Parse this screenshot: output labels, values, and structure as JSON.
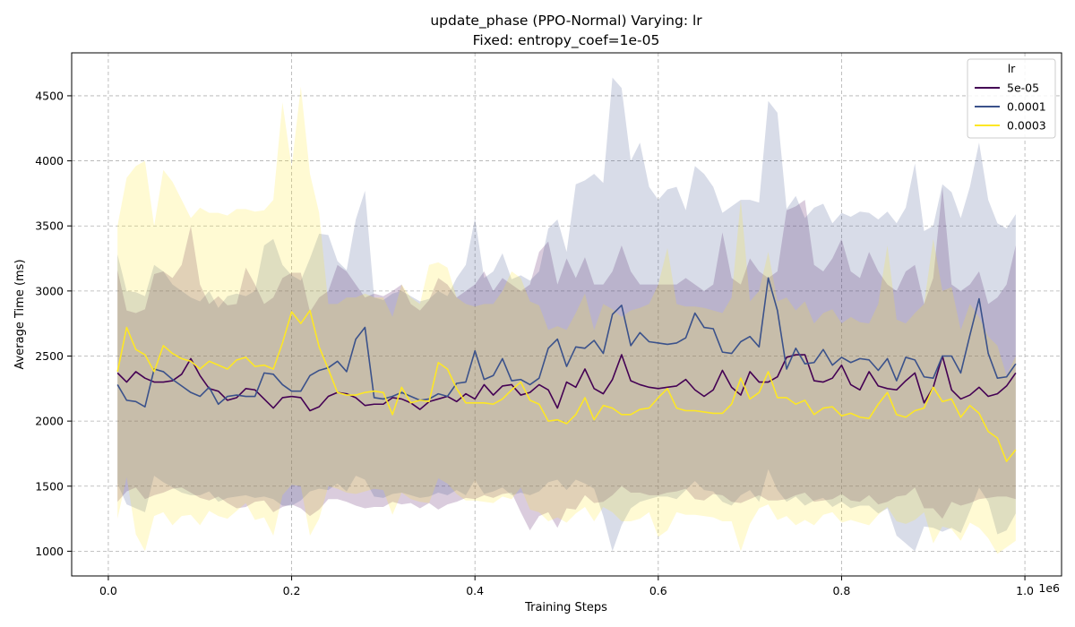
{
  "chart_data": {
    "type": "line",
    "title_line1": "update_phase (PPO-Normal) Varying: lr",
    "title_line2": "Fixed: entropy_coef=1e-05",
    "xlabel": "Training Steps",
    "ylabel": "Average Time (ms)",
    "x_offset_label": "1e6",
    "xlim": [
      -0.04,
      1.04
    ],
    "ylim": [
      810,
      4830
    ],
    "x_ticks": [
      0.0,
      0.2,
      0.4,
      0.6,
      0.8,
      1.0
    ],
    "x_tick_labels": [
      "0.0",
      "0.2",
      "0.4",
      "0.6",
      "0.8",
      "1.0"
    ],
    "y_ticks": [
      1000,
      1500,
      2000,
      2500,
      3000,
      3500,
      4000,
      4500
    ],
    "y_tick_labels": [
      "1000",
      "1500",
      "2000",
      "2500",
      "3000",
      "3500",
      "4000",
      "4500"
    ],
    "grid": true,
    "legend": {
      "title": "lr",
      "position": "top-right"
    },
    "x": [
      0.01,
      0.02,
      0.03,
      0.04,
      0.05,
      0.06,
      0.07,
      0.08,
      0.09,
      0.1,
      0.11,
      0.12,
      0.13,
      0.14,
      0.15,
      0.16,
      0.17,
      0.18,
      0.19,
      0.2,
      0.21,
      0.22,
      0.23,
      0.24,
      0.25,
      0.26,
      0.27,
      0.28,
      0.29,
      0.3,
      0.31,
      0.32,
      0.33,
      0.34,
      0.35,
      0.36,
      0.37,
      0.38,
      0.39,
      0.4,
      0.41,
      0.42,
      0.43,
      0.44,
      0.45,
      0.46,
      0.47,
      0.48,
      0.49,
      0.5,
      0.51,
      0.52,
      0.53,
      0.54,
      0.55,
      0.56,
      0.57,
      0.58,
      0.59,
      0.6,
      0.61,
      0.62,
      0.63,
      0.64,
      0.65,
      0.66,
      0.67,
      0.68,
      0.69,
      0.7,
      0.71,
      0.72,
      0.73,
      0.74,
      0.75,
      0.76,
      0.77,
      0.78,
      0.79,
      0.8,
      0.81,
      0.82,
      0.83,
      0.84,
      0.85,
      0.86,
      0.87,
      0.88,
      0.89,
      0.9,
      0.91,
      0.92,
      0.93,
      0.94,
      0.95,
      0.96,
      0.97,
      0.98,
      0.99
    ],
    "series": [
      {
        "name": "5e-05",
        "color": "#440154",
        "values": [
          2370,
          2300,
          2380,
          2330,
          2300,
          2300,
          2310,
          2360,
          2480,
          2350,
          2250,
          2230,
          2160,
          2180,
          2250,
          2240,
          2170,
          2100,
          2180,
          2190,
          2180,
          2080,
          2110,
          2190,
          2220,
          2210,
          2180,
          2120,
          2130,
          2130,
          2180,
          2170,
          2140,
          2090,
          2150,
          2170,
          2190,
          2150,
          2210,
          2170,
          2280,
          2200,
          2270,
          2280,
          2200,
          2220,
          2280,
          2240,
          2100,
          2300,
          2260,
          2400,
          2250,
          2210,
          2320,
          2510,
          2310,
          2280,
          2260,
          2250,
          2260,
          2270,
          2320,
          2240,
          2190,
          2240,
          2390,
          2260,
          2200,
          2380,
          2300,
          2300,
          2340,
          2490,
          2510,
          2510,
          2310,
          2300,
          2330,
          2430,
          2280,
          2240,
          2380,
          2270,
          2250,
          2240,
          2310,
          2370,
          2140,
          2260,
          2500,
          2240,
          2170,
          2200,
          2260,
          2190,
          2210,
          2270,
          2370
        ],
        "upper": [
          3160,
          2850,
          2830,
          2860,
          3130,
          3150,
          3100,
          3200,
          3500,
          3050,
          2900,
          2960,
          2890,
          2900,
          3180,
          3050,
          2900,
          2950,
          3100,
          3140,
          3140,
          2840,
          2950,
          3000,
          3200,
          3150,
          3050,
          2950,
          2980,
          2960,
          3000,
          3050,
          2900,
          2850,
          2930,
          3100,
          3050,
          2950,
          3000,
          3050,
          3150,
          3000,
          3100,
          3050,
          3000,
          3050,
          3300,
          3380,
          3050,
          3250,
          3100,
          3260,
          3050,
          3050,
          3150,
          3350,
          3150,
          3050,
          3050,
          3050,
          3050,
          3050,
          3100,
          3050,
          3000,
          3050,
          3450,
          3100,
          3050,
          3250,
          3150,
          3100,
          3150,
          3620,
          3650,
          3700,
          3200,
          3150,
          3250,
          3400,
          3150,
          3100,
          3300,
          3150,
          3050,
          3000,
          3150,
          3200,
          2900,
          3100,
          3800,
          3050,
          3000,
          3050,
          3150,
          2900,
          2950,
          3050,
          3350
        ],
        "lower": [
          1380,
          1460,
          1490,
          1400,
          1430,
          1450,
          1480,
          1490,
          1450,
          1410,
          1390,
          1420,
          1370,
          1330,
          1340,
          1380,
          1390,
          1300,
          1340,
          1360,
          1330,
          1270,
          1320,
          1400,
          1400,
          1380,
          1350,
          1330,
          1340,
          1340,
          1380,
          1360,
          1370,
          1330,
          1370,
          1320,
          1360,
          1380,
          1410,
          1400,
          1430,
          1410,
          1440,
          1450,
          1300,
          1160,
          1270,
          1300,
          1180,
          1330,
          1320,
          1430,
          1370,
          1380,
          1430,
          1500,
          1450,
          1450,
          1430,
          1430,
          1450,
          1460,
          1480,
          1400,
          1390,
          1440,
          1430,
          1380,
          1370,
          1400,
          1430,
          1390,
          1390,
          1400,
          1430,
          1450,
          1380,
          1390,
          1400,
          1440,
          1390,
          1380,
          1430,
          1360,
          1380,
          1420,
          1430,
          1490,
          1330,
          1330,
          1250,
          1380,
          1350,
          1370,
          1400,
          1410,
          1420,
          1420,
          1400
        ]
      },
      {
        "name": "0.0001",
        "color": "#3b528b",
        "values": [
          2280,
          2160,
          2150,
          2110,
          2400,
          2380,
          2320,
          2270,
          2220,
          2190,
          2260,
          2130,
          2190,
          2200,
          2190,
          2190,
          2370,
          2360,
          2280,
          2230,
          2230,
          2350,
          2390,
          2410,
          2460,
          2380,
          2630,
          2720,
          2180,
          2170,
          2190,
          2220,
          2190,
          2160,
          2170,
          2210,
          2190,
          2290,
          2300,
          2540,
          2320,
          2350,
          2480,
          2310,
          2320,
          2280,
          2330,
          2560,
          2630,
          2420,
          2570,
          2560,
          2620,
          2520,
          2820,
          2890,
          2580,
          2680,
          2610,
          2600,
          2590,
          2600,
          2640,
          2830,
          2720,
          2710,
          2530,
          2520,
          2610,
          2650,
          2570,
          3100,
          2850,
          2400,
          2560,
          2440,
          2450,
          2550,
          2430,
          2490,
          2450,
          2480,
          2470,
          2390,
          2480,
          2310,
          2490,
          2470,
          2340,
          2330,
          2500,
          2500,
          2370,
          2660,
          2940,
          2520,
          2330,
          2340,
          2440
        ],
        "upper": [
          3280,
          3000,
          2990,
          2960,
          3200,
          3150,
          3050,
          3000,
          2950,
          2920,
          3000,
          2870,
          2960,
          2980,
          2960,
          3000,
          3350,
          3400,
          3200,
          3120,
          3080,
          3250,
          3440,
          3430,
          3230,
          3160,
          3550,
          3770,
          2950,
          2930,
          2980,
          3000,
          2960,
          2920,
          2940,
          3000,
          2960,
          3100,
          3200,
          3560,
          3100,
          3150,
          3290,
          3090,
          3120,
          3080,
          3150,
          3480,
          3550,
          3300,
          3820,
          3850,
          3900,
          3830,
          4640,
          4560,
          4000,
          4140,
          3800,
          3700,
          3780,
          3800,
          3620,
          3960,
          3900,
          3800,
          3600,
          3650,
          3700,
          3700,
          3680,
          4460,
          4370,
          3630,
          3730,
          3560,
          3640,
          3670,
          3520,
          3600,
          3570,
          3610,
          3600,
          3550,
          3610,
          3520,
          3640,
          3980,
          3460,
          3500,
          3820,
          3760,
          3560,
          3800,
          4140,
          3700,
          3520,
          3480,
          3590
        ],
        "lower": [
          1520,
          1360,
          1330,
          1300,
          1580,
          1530,
          1490,
          1450,
          1430,
          1430,
          1460,
          1380,
          1410,
          1420,
          1430,
          1410,
          1420,
          1400,
          1350,
          1350,
          1390,
          1460,
          1480,
          1470,
          1520,
          1460,
          1580,
          1550,
          1420,
          1410,
          1440,
          1450,
          1430,
          1410,
          1420,
          1450,
          1430,
          1470,
          1430,
          1550,
          1440,
          1460,
          1490,
          1430,
          1450,
          1430,
          1460,
          1530,
          1550,
          1470,
          1550,
          1520,
          1480,
          1270,
          1000,
          1200,
          1330,
          1380,
          1400,
          1420,
          1420,
          1400,
          1470,
          1540,
          1470,
          1460,
          1380,
          1350,
          1430,
          1470,
          1380,
          1630,
          1470,
          1380,
          1420,
          1350,
          1390,
          1410,
          1340,
          1380,
          1330,
          1350,
          1350,
          1290,
          1330,
          1120,
          1060,
          1000,
          1190,
          1180,
          1150,
          1180,
          1140,
          1310,
          1490,
          1380,
          1130,
          1160,
          1290
        ]
      },
      {
        "name": "0.0003",
        "color": "#fde725",
        "values": [
          2380,
          2720,
          2550,
          2510,
          2380,
          2580,
          2520,
          2480,
          2460,
          2400,
          2460,
          2430,
          2400,
          2470,
          2490,
          2420,
          2430,
          2400,
          2600,
          2840,
          2750,
          2850,
          2570,
          2400,
          2220,
          2200,
          2200,
          2220,
          2230,
          2220,
          2050,
          2260,
          2140,
          2160,
          2150,
          2450,
          2400,
          2250,
          2140,
          2140,
          2140,
          2130,
          2170,
          2240,
          2300,
          2160,
          2130,
          2000,
          2010,
          1980,
          2050,
          2180,
          2010,
          2120,
          2100,
          2050,
          2050,
          2090,
          2100,
          2180,
          2250,
          2100,
          2080,
          2080,
          2070,
          2060,
          2060,
          2130,
          2330,
          2170,
          2220,
          2380,
          2180,
          2180,
          2130,
          2160,
          2050,
          2100,
          2110,
          2040,
          2060,
          2030,
          2020,
          2130,
          2220,
          2050,
          2030,
          2080,
          2100,
          2260,
          2150,
          2170,
          2030,
          2120,
          2060,
          1920,
          1870,
          1690,
          1780
        ],
        "upper": [
          3500,
          3870,
          3960,
          4000,
          3500,
          3930,
          3840,
          3700,
          3560,
          3640,
          3600,
          3600,
          3580,
          3630,
          3630,
          3610,
          3620,
          3700,
          4450,
          3950,
          4570,
          3900,
          3600,
          2900,
          2900,
          2950,
          2950,
          2980,
          2950,
          2950,
          2800,
          3050,
          2950,
          2900,
          3200,
          3220,
          3180,
          2950,
          2900,
          2880,
          2900,
          2900,
          3000,
          3150,
          3100,
          2920,
          2890,
          2700,
          2730,
          2700,
          2830,
          2980,
          2700,
          2900,
          2860,
          2800,
          2850,
          2870,
          2900,
          3050,
          3330,
          2900,
          2880,
          2880,
          2870,
          2850,
          2830,
          2950,
          3700,
          2920,
          3000,
          3300,
          2920,
          2950,
          2850,
          2920,
          2750,
          2830,
          2860,
          2750,
          2800,
          2760,
          2750,
          2900,
          3350,
          2780,
          2750,
          2830,
          2900,
          3400,
          3000,
          3030,
          2700,
          2900,
          2800,
          2650,
          2580,
          2350,
          2500
        ],
        "lower": [
          1250,
          1570,
          1130,
          1000,
          1270,
          1300,
          1200,
          1270,
          1280,
          1200,
          1310,
          1270,
          1250,
          1310,
          1370,
          1240,
          1260,
          1120,
          1430,
          1510,
          1500,
          1120,
          1250,
          1500,
          1480,
          1450,
          1440,
          1460,
          1480,
          1470,
          1280,
          1450,
          1400,
          1380,
          1370,
          1560,
          1520,
          1440,
          1390,
          1390,
          1380,
          1370,
          1420,
          1400,
          1490,
          1320,
          1300,
          1230,
          1260,
          1220,
          1290,
          1340,
          1230,
          1340,
          1300,
          1230,
          1230,
          1250,
          1300,
          1110,
          1160,
          1300,
          1280,
          1280,
          1270,
          1260,
          1230,
          1230,
          1000,
          1210,
          1330,
          1360,
          1240,
          1270,
          1200,
          1240,
          1200,
          1280,
          1300,
          1220,
          1240,
          1220,
          1200,
          1280,
          1340,
          1230,
          1210,
          1240,
          1300,
          1060,
          1190,
          1170,
          1080,
          1220,
          1180,
          1100,
          980,
          1030,
          1080
        ]
      }
    ]
  }
}
